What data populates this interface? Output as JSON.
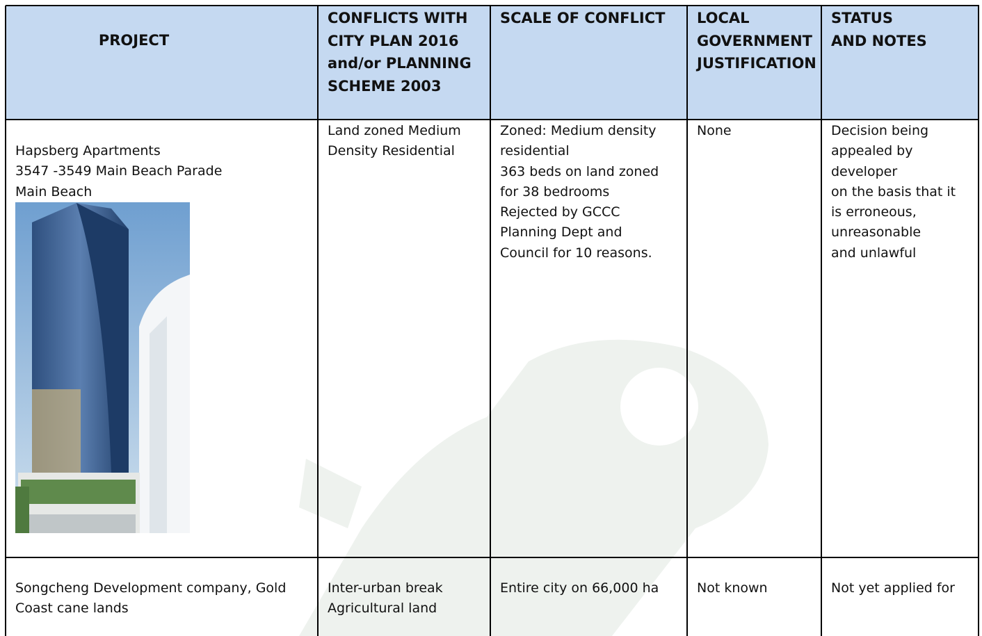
{
  "table": {
    "header": [
      [
        "PROJECT"
      ],
      [
        "CONFLICTS WITH",
        "CITY PLAN 2016",
        "and/or PLANNING",
        "SCHEME 2003"
      ],
      [
        "SCALE OF CONFLICT"
      ],
      [
        "LOCAL",
        "GOVERNMENT",
        "JUSTIFICATION"
      ],
      [
        "STATUS",
        "AND NOTES"
      ]
    ],
    "rows": [
      [
        [
          "Hapsberg Apartments",
          "3547 -3549 Main Beach Parade",
          "Main Beach"
        ],
        [
          "Land zoned Medium",
          "Density Residential"
        ],
        [
          "Zoned: Medium density",
          "residential",
          "363 beds on land zoned",
          "for 38 bedrooms",
          "Rejected by GCCC",
          "Planning Dept and",
          "Council for 10 reasons."
        ],
        [
          "None"
        ],
        [
          "Decision being",
          "appealed by",
          "developer",
          "on the basis that it",
          "is erroneous,",
          "unreasonable",
          "and unlawful"
        ]
      ],
      [
        [
          "Songcheng Development company, Gold",
          "Coast cane lands"
        ],
        [
          "Inter-urban break",
          "Agricultural land"
        ],
        [
          "Entire city on 66,000 ha"
        ],
        [
          "Not known"
        ],
        [
          "Not yet applied for"
        ]
      ]
    ]
  }
}
